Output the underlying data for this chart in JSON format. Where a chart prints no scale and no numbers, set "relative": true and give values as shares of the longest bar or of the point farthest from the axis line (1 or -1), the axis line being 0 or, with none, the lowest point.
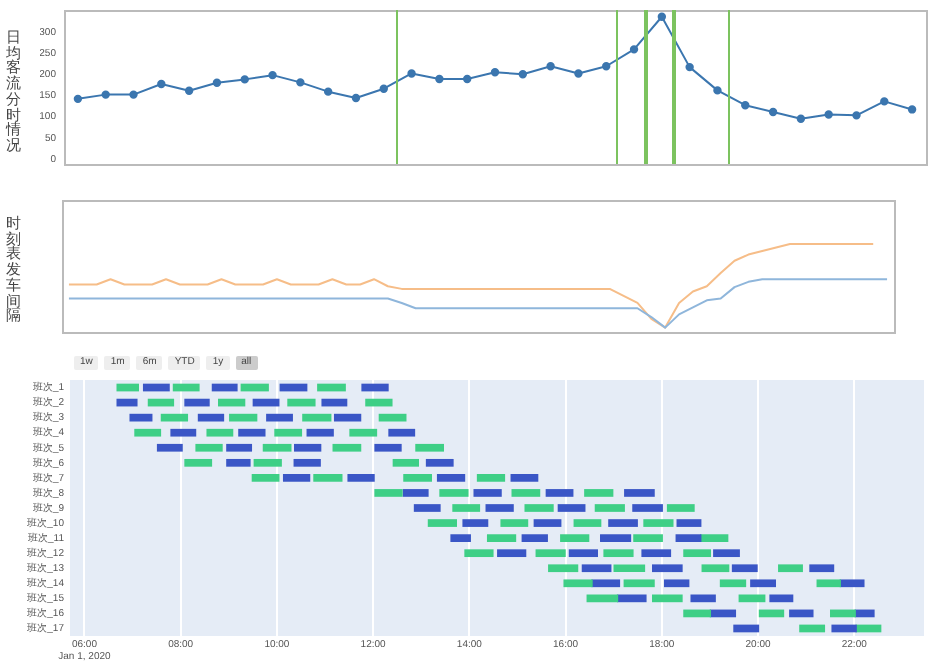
{
  "chart_data": [
    {
      "type": "line",
      "ylabel": "日均客流分时情况",
      "categories": [
        null,
        null,
        null,
        null,
        null,
        null,
        null,
        null,
        null,
        null,
        null,
        null,
        null,
        null,
        null,
        null,
        null,
        null,
        null,
        null,
        null,
        null,
        null,
        null,
        null,
        null,
        null,
        null,
        null,
        null,
        null
      ],
      "values": [
        142,
        152,
        152,
        177,
        161,
        180,
        188,
        198,
        181,
        159,
        144,
        166,
        202,
        189,
        189,
        205,
        200,
        219,
        202,
        219,
        259,
        336,
        217,
        162,
        127,
        111,
        95,
        105,
        103,
        136,
        117
      ],
      "color": "#3b76af",
      "marker": "circle",
      "ylim": [
        -12,
        352
      ],
      "yticks": [
        0,
        50,
        100,
        150,
        200,
        250,
        300
      ],
      "tick_labels": "y"
    },
    {
      "type": "line",
      "ylabel": "时刻表发车间隔",
      "relative": true,
      "tick_labels": false,
      "categories": [
        null,
        null,
        null,
        null,
        null,
        null,
        null,
        null,
        null,
        null,
        null,
        null,
        null,
        null,
        null,
        null,
        null,
        null,
        null,
        null,
        null,
        null,
        null,
        null,
        null,
        null,
        null,
        null,
        null,
        null,
        null,
        null,
        null,
        null,
        null,
        null,
        null,
        null,
        null,
        null,
        null,
        null,
        null,
        null,
        null,
        null,
        null,
        null,
        null,
        null,
        null,
        null,
        null,
        null,
        null,
        null,
        null,
        null,
        null,
        null
      ],
      "series": [
        {
          "color": "#8fb6db",
          "values": [
            0.38,
            0.38,
            0.38,
            0.38,
            0.38,
            0.38,
            0.38,
            0.38,
            0.38,
            0.38,
            0.38,
            0.38,
            0.38,
            0.38,
            0.38,
            0.38,
            0.38,
            0.38,
            0.38,
            0.38,
            0.38,
            0.38,
            0.38,
            0.38,
            0.33,
            0.27,
            0.27,
            0.27,
            0.27,
            0.27,
            0.27,
            0.27,
            0.27,
            0.27,
            0.27,
            0.27,
            0.27,
            0.27,
            0.27,
            0.27,
            0.27,
            0.27,
            0.17,
            0.05,
            0.2,
            0.28,
            0.36,
            0.38,
            0.51,
            0.57,
            0.6,
            0.6,
            0.6,
            0.6,
            0.6,
            0.6,
            0.6,
            0.6,
            0.6,
            0.6
          ]
        },
        {
          "color": "#f6bd88",
          "values": [
            0.54,
            0.54,
            0.54,
            0.6,
            0.54,
            0.54,
            0.54,
            0.6,
            0.54,
            0.54,
            0.54,
            0.6,
            0.54,
            0.54,
            0.54,
            0.6,
            0.54,
            0.54,
            0.54,
            0.6,
            0.54,
            0.54,
            0.6,
            0.52,
            0.49,
            0.49,
            0.49,
            0.49,
            0.49,
            0.49,
            0.49,
            0.49,
            0.49,
            0.49,
            0.49,
            0.49,
            0.49,
            0.49,
            0.49,
            0.49,
            0.41,
            0.33,
            0.15,
            0.05,
            0.33,
            0.46,
            0.52,
            0.67,
            0.81,
            0.88,
            0.92,
            0.96,
            1,
            1,
            1,
            1,
            1,
            1,
            1,
            null
          ]
        }
      ]
    },
    {
      "type": "bar",
      "orientation": "horizontal",
      "grid": "x",
      "categories": [
        "班次_1",
        "班次_2",
        "班次_3",
        "班次_4",
        "班次_5",
        "班次_6",
        "班次_7",
        "班次_8",
        "班次_9",
        "班次_10",
        "班次_11",
        "班次_12",
        "班次_13",
        "班次_14",
        "班次_15",
        "班次_16",
        "班次_17"
      ],
      "xlim": [
        5.7,
        23.45
      ],
      "xticks": [
        {
          "value": 6,
          "label": "06:00\nJan 1, 2020"
        },
        {
          "value": 8,
          "label": "08:00"
        },
        {
          "value": 10,
          "label": "10:00"
        },
        {
          "value": 12,
          "label": "12:00"
        },
        {
          "value": 14,
          "label": "14:00"
        },
        {
          "value": 16,
          "label": "16:00"
        },
        {
          "value": 18,
          "label": "18:00"
        },
        {
          "value": 20,
          "label": "20:00"
        },
        {
          "value": 22,
          "label": "22:00"
        }
      ],
      "annotations": [
        "1w",
        "1m",
        "6m",
        "YTD",
        "1y",
        "all"
      ],
      "series": [
        {
          "base": [
            6.68,
            6.68,
            6.95,
            7.05,
            7.52,
            8.09,
            9.49,
            12.04,
            12.86,
            13.15,
            13.62,
            13.91,
            15.65,
            15.97,
            16.45,
            18.46,
            19.5
          ],
          "values": [
            0.44,
            0.41,
            0.45,
            0.53,
            0.51,
            0.55,
            0.55,
            0.56,
            0.53,
            0.58,
            0.4,
            0.58,
            0.6,
            0.58,
            0.63,
            0.55,
            0.51
          ],
          "colors": [
            "#3ecf86",
            "#3a56c6",
            "#3a56c6",
            "#3ecf86",
            "#3a56c6",
            "#3ecf86",
            "#3ecf86",
            "#3ecf86",
            "#3a56c6",
            "#3ecf86",
            "#3a56c6",
            "#3ecf86",
            "#3ecf86",
            "#3ecf86",
            "#3ecf86",
            "#3ecf86",
            "#3a56c6"
          ]
        },
        {
          "base": [
            7.23,
            7.33,
            7.6,
            7.8,
            8.32,
            8.96,
            10.14,
            12.63,
            13.66,
            13.87,
            14.38,
            14.59,
            16.35,
            16.55,
            17.08,
            19.01,
            20.87
          ],
          "values": [
            0.53,
            0.52,
            0.54,
            0.51,
            0.54,
            0.48,
            0.54,
            0.51,
            0.55,
            0.51,
            0.58,
            0.58,
            0.59,
            0.57,
            0.59,
            0.52,
            0.51
          ],
          "colors": [
            "#3a56c6",
            "#3ecf86",
            "#3ecf86",
            "#3a56c6",
            "#3ecf86",
            "#3a56c6",
            "#3a56c6",
            "#3a56c6",
            "#3ecf86",
            "#3a56c6",
            "#3ecf86",
            "#3a56c6",
            "#3a56c6",
            "#3a56c6",
            "#3a56c6",
            "#3a56c6",
            "#3ecf86"
          ]
        },
        {
          "base": [
            7.85,
            8.09,
            8.37,
            8.55,
            8.96,
            9.53,
            10.77,
            13.39,
            14.35,
            14.66,
            15.1,
            15.39,
            17.01,
            17.22,
            17.81,
            20.03,
            21.54
          ],
          "values": [
            0.53,
            0.5,
            0.52,
            0.53,
            0.51,
            0.56,
            0.58,
            0.58,
            0.56,
            0.55,
            0.52,
            0.6,
            0.63,
            0.62,
            0.61,
            0.5,
            0.5
          ],
          "colors": [
            "#3ecf86",
            "#3a56c6",
            "#3a56c6",
            "#3ecf86",
            "#3a56c6",
            "#3ecf86",
            "#3ecf86",
            "#3ecf86",
            "#3a56c6",
            "#3ecf86",
            "#3a56c6",
            "#3ecf86",
            "#3ecf86",
            "#3ecf86",
            "#3ecf86",
            "#3ecf86",
            "#3a56c6"
          ]
        },
        {
          "base": [
            8.66,
            8.79,
            9.02,
            9.21,
            9.72,
            10.36,
            11.48,
            14.1,
            15.16,
            15.35,
            15.9,
            16.08,
            17.81,
            18.06,
            18.61,
            20.66,
            22.04
          ],
          "values": [
            0.51,
            0.54,
            0.56,
            0.54,
            0.57,
            0.54,
            0.54,
            0.56,
            0.58,
            0.55,
            0.58,
            0.58,
            0.61,
            0.5,
            0.5,
            0.48,
            0.51
          ],
          "colors": [
            "#3a56c6",
            "#3ecf86",
            "#3ecf86",
            "#3a56c6",
            "#3ecf86",
            "#3a56c6",
            "#3a56c6",
            "#3a56c6",
            "#3ecf86",
            "#3a56c6",
            "#3ecf86",
            "#3a56c6",
            "#3a56c6",
            "#3a56c6",
            "#3a56c6",
            "#3a56c6",
            "#3ecf86"
          ]
        },
        {
          "base": [
            9.26,
            9.51,
            9.79,
            9.96,
            10.37,
            12.42,
            12.64,
            14.89,
            15.85,
            16.18,
            16.73,
            16.8,
            18.84,
            19.22,
            19.61,
            21.51,
            null
          ],
          "values": [
            0.56,
            0.53,
            0.53,
            0.55,
            0.54,
            0.52,
            0.57,
            0.57,
            0.55,
            0.55,
            0.62,
            0.6,
            0.55,
            0.52,
            0.53,
            0.51,
            null
          ],
          "colors": [
            "#3ecf86",
            "#3a56c6",
            "#3a56c6",
            "#3ecf86",
            "#3a56c6",
            "#3ecf86",
            "#3ecf86",
            "#3ecf86",
            "#3a56c6",
            "#3ecf86",
            "#3a56c6",
            "#3ecf86",
            "#3ecf86",
            "#3ecf86",
            "#3ecf86",
            "#3ecf86",
            null
          ]
        },
        {
          "base": [
            10.07,
            10.23,
            10.54,
            10.63,
            11.17,
            13.11,
            13.34,
            15.6,
            16.62,
            16.9,
            17.42,
            17.59,
            19.47,
            19.85,
            20.25,
            22.02,
            null
          ],
          "values": [
            0.55,
            0.56,
            0.58,
            0.54,
            0.57,
            0.55,
            0.56,
            0.55,
            0.6,
            0.59,
            0.59,
            0.59,
            0.51,
            0.51,
            0.47,
            0.39,
            null
          ],
          "colors": [
            "#3a56c6",
            "#3ecf86",
            "#3ecf86",
            "#3a56c6",
            "#3ecf86",
            "#3a56c6",
            "#3a56c6",
            "#3a56c6",
            "#3ecf86",
            "#3a56c6",
            "#3ecf86",
            "#3a56c6",
            "#3a56c6",
            "#3a56c6",
            "#3a56c6",
            "#3a56c6",
            null
          ]
        },
        {
          "base": [
            10.85,
            10.94,
            11.2,
            11.52,
            12.04,
            null,
            14.17,
            16.4,
            17.4,
            17.63,
            18.3,
            18.46,
            20.43,
            21.23,
            null,
            null,
            null
          ],
          "values": [
            0.57,
            0.51,
            0.54,
            0.55,
            0.54,
            null,
            0.56,
            0.58,
            0.61,
            0.6,
            0.51,
            0.55,
            0.49,
            0.48,
            null,
            null,
            null
          ],
          "colors": [
            "#3ecf86",
            "#3a56c6",
            "#3a56c6",
            "#3ecf86",
            "#3a56c6",
            null,
            "#3ecf86",
            "#3ecf86",
            "#3a56c6",
            "#3ecf86",
            "#3a56c6",
            "#3ecf86",
            "#3ecf86",
            "#3ecf86",
            null,
            null,
            null
          ]
        },
        {
          "base": [
            11.77,
            11.85,
            12.13,
            12.33,
            12.89,
            null,
            14.87,
            17.23,
            18.12,
            18.32,
            18.81,
            19.08,
            21.08,
            21.71,
            null,
            null,
            null
          ],
          "values": [
            0.54,
            0.54,
            0.55,
            0.53,
            0.57,
            null,
            0.55,
            0.61,
            0.55,
            0.49,
            0.56,
            0.53,
            0.49,
            0.49,
            null,
            null,
            null
          ],
          "colors": [
            "#3a56c6",
            "#3ecf86",
            "#3ecf86",
            "#3a56c6",
            "#3ecf86",
            null,
            "#3a56c6",
            "#3a56c6",
            "#3ecf86",
            "#3a56c6",
            "#3ecf86",
            "#3a56c6",
            "#3a56c6",
            "#3a56c6",
            null,
            null,
            null
          ]
        }
      ]
    }
  ]
}
